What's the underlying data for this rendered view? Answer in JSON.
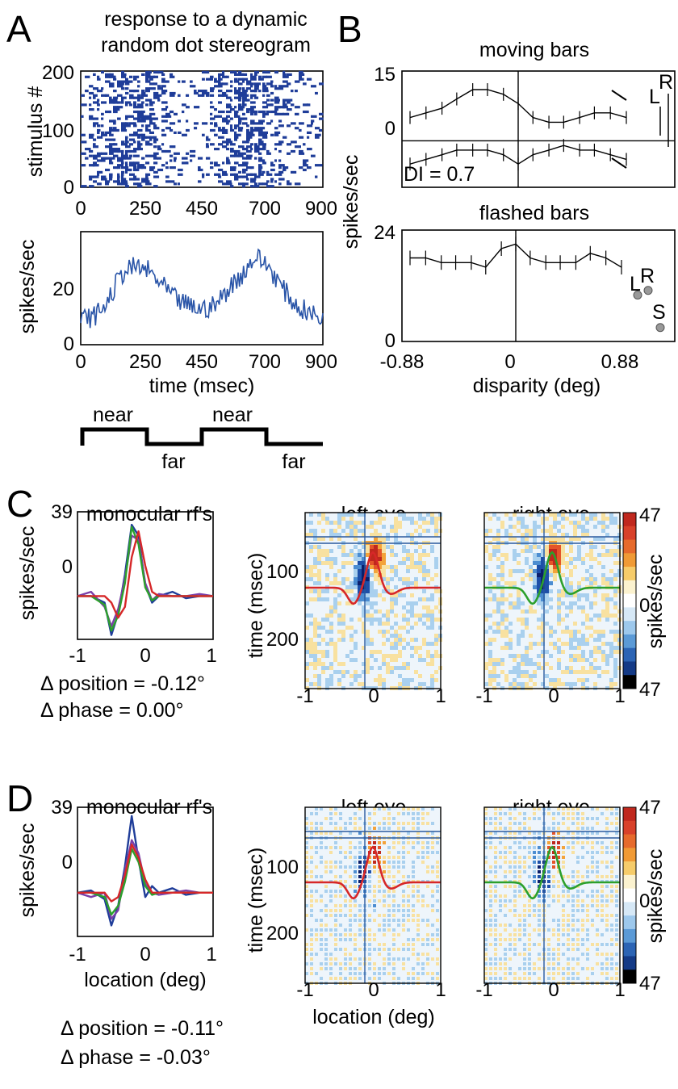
{
  "panels": {
    "A": {
      "label": "A",
      "title_lines": [
        "response to a dynamic",
        "random dot stereogram"
      ],
      "raster": {
        "type": "scatter",
        "ylabel": "stimulus #",
        "x_ticks": [
          "0",
          "250",
          "450",
          "700",
          "900"
        ],
        "y_ticks": [
          "0",
          "100",
          "200"
        ],
        "xlim": [
          0,
          900
        ],
        "ylim": [
          0,
          200
        ],
        "color": "#1f3d99"
      },
      "psth": {
        "type": "line",
        "ylabel": "spikes/sec",
        "xlabel": "time (msec)",
        "x_ticks": [
          "0",
          "250",
          "450",
          "700",
          "900"
        ],
        "y_ticks": [
          "0",
          "20"
        ],
        "xlim": [
          0,
          900
        ],
        "ylim": [
          0,
          32
        ],
        "color": "#2a55a8",
        "x": [
          0,
          50,
          100,
          150,
          200,
          250,
          300,
          350,
          400,
          450,
          500,
          550,
          600,
          650,
          700,
          750,
          800,
          850,
          900
        ],
        "y": [
          7,
          8,
          12,
          20,
          22,
          21,
          17,
          13,
          11,
          10,
          11,
          16,
          20,
          25,
          22,
          16,
          11,
          9,
          7
        ]
      },
      "stimulus": {
        "labels": [
          "near",
          "far",
          "near",
          "far"
        ]
      }
    },
    "B": {
      "label": "B",
      "moving": {
        "type": "line",
        "title": "moving bars",
        "ylabel": "spikes/sec",
        "y_ticks": [
          "15",
          "0"
        ],
        "note": "DI = 0.7",
        "monocular_labels": [
          "L",
          "R"
        ],
        "xlim": [
          -0.88,
          0.88
        ],
        "ylim": [
          -10,
          15
        ],
        "x": [
          -0.88,
          -0.75,
          -0.62,
          -0.5,
          -0.37,
          -0.25,
          -0.12,
          0,
          0.12,
          0.25,
          0.37,
          0.5,
          0.62,
          0.75,
          0.88
        ],
        "series": [
          {
            "values": [
              5,
              6,
              7,
              9,
              11,
              11,
              10,
              8,
              5,
              4,
              4,
              5,
              6,
              6,
              5
            ]
          },
          {
            "values": [
              -5,
              -4,
              -3,
              -2,
              -2,
              -2,
              -3,
              -5,
              -3,
              -2,
              -1,
              -2,
              -2,
              -3,
              -4
            ]
          }
        ]
      },
      "flashed": {
        "type": "line",
        "title": "flashed bars",
        "ylabel": "spikes/sec",
        "xlabel": "disparity (deg)",
        "x_ticks": [
          "-0.88",
          "0",
          "0.88"
        ],
        "y_ticks": [
          "24",
          "0"
        ],
        "monocular_labels": [
          "L",
          "R",
          "S"
        ],
        "xlim": [
          -0.88,
          0.88
        ],
        "ylim": [
          0,
          24
        ],
        "x": [
          -0.88,
          -0.75,
          -0.62,
          -0.5,
          -0.37,
          -0.25,
          -0.12,
          0,
          0.12,
          0.25,
          0.37,
          0.5,
          0.62,
          0.75,
          0.88
        ],
        "y": [
          18,
          18,
          17,
          17,
          17,
          16,
          20,
          21,
          18,
          17,
          17,
          17,
          19,
          18,
          16
        ],
        "monocular_values": {
          "L": 10,
          "R": 11,
          "S": 3
        }
      }
    },
    "C": {
      "label": "C",
      "rf": {
        "type": "line",
        "title": "monocular rf's",
        "ylabel": "spikes/sec",
        "y_ticks": [
          "39",
          "0"
        ],
        "x_ticks": [
          "-1",
          "0",
          "1"
        ],
        "xlim": [
          -1,
          1
        ],
        "ylim": [
          -20,
          39
        ],
        "x": [
          -1,
          -0.8,
          -0.6,
          -0.5,
          -0.4,
          -0.3,
          -0.2,
          -0.1,
          0,
          0.1,
          0.2,
          0.4,
          0.6,
          0.8,
          1
        ],
        "series": [
          {
            "color": "#1f3d99",
            "values": [
              0,
              0,
              -3,
              -18,
              -8,
              10,
              33,
              28,
              5,
              -3,
              0,
              2,
              -1,
              0,
              0
            ]
          },
          {
            "color": "#7a3fa8",
            "values": [
              0,
              2,
              -5,
              -14,
              -6,
              8,
              28,
              26,
              6,
              -2,
              1,
              0,
              0,
              1,
              0
            ]
          },
          {
            "color": "#2ca02c",
            "values": [
              0,
              0,
              -4,
              -16,
              -9,
              6,
              32,
              24,
              4,
              -2,
              0,
              0,
              0,
              0,
              0
            ]
          },
          {
            "color": "#d62728",
            "values": [
              0,
              0,
              0,
              -3,
              -10,
              -5,
              18,
              30,
              14,
              2,
              0,
              0,
              0,
              0,
              0
            ]
          }
        ],
        "notes": [
          "Δ position = -0.12°",
          "Δ phase = 0.00°"
        ]
      },
      "left_eye": {
        "type": "heatmap",
        "title": "left eye",
        "ylabel": "time (msec)",
        "y_ticks": [
          "100",
          "200"
        ],
        "x_ticks": [
          "-1",
          "0",
          "1"
        ],
        "curve_color": "#d62728"
      },
      "right_eye": {
        "type": "heatmap",
        "title": "right eye",
        "x_ticks": [
          "-1",
          "0",
          "1"
        ],
        "curve_color": "#2ca02c"
      },
      "colorbar": {
        "ticks": [
          "47",
          "0",
          "47"
        ],
        "label": "spikes/sec"
      }
    },
    "D": {
      "label": "D",
      "rf": {
        "type": "line",
        "title": "monocular rf's",
        "ylabel": "spikes/sec",
        "xlabel": "location (deg)",
        "y_ticks": [
          "39",
          "0"
        ],
        "x_ticks": [
          "-1",
          "0",
          "1"
        ],
        "xlim": [
          -1,
          1
        ],
        "ylim": [
          -20,
          39
        ],
        "x": [
          -1,
          -0.8,
          -0.6,
          -0.5,
          -0.4,
          -0.3,
          -0.2,
          -0.1,
          0,
          0.1,
          0.2,
          0.4,
          0.6,
          0.8,
          1
        ],
        "series": [
          {
            "color": "#1f3d99",
            "values": [
              0,
              1,
              -3,
              -15,
              -6,
              12,
              35,
              15,
              -2,
              3,
              0,
              2,
              -1,
              0,
              0
            ]
          },
          {
            "color": "#7a3fa8",
            "values": [
              0,
              -2,
              0,
              -12,
              -8,
              10,
              24,
              18,
              4,
              0,
              -1,
              0,
              1,
              0,
              0
            ]
          },
          {
            "color": "#2ca02c",
            "values": [
              0,
              0,
              -2,
              -10,
              -6,
              5,
              20,
              14,
              3,
              -1,
              0,
              0,
              0,
              0,
              0
            ]
          },
          {
            "color": "#d62728",
            "values": [
              0,
              0,
              0,
              -4,
              -2,
              8,
              22,
              16,
              6,
              0,
              0,
              0,
              0,
              0,
              0
            ]
          }
        ],
        "notes": [
          "Δ position = -0.11°",
          "Δ phase = -0.03°"
        ]
      },
      "left_eye": {
        "type": "heatmap",
        "title": "left eye",
        "ylabel": "time (msec)",
        "xlabel": "location (deg)",
        "y_ticks": [
          "100",
          "200"
        ],
        "x_ticks": [
          "-1",
          "0",
          "1"
        ],
        "curve_color": "#d62728"
      },
      "right_eye": {
        "type": "heatmap",
        "title": "right eye",
        "x_ticks": [
          "-1",
          "0",
          "1"
        ],
        "curve_color": "#2ca02c"
      },
      "colorbar": {
        "ticks": [
          "47",
          "0",
          "47"
        ],
        "label": "spikes/sec"
      }
    }
  },
  "chart_data": [
    {
      "type": "scatter",
      "title": "response to a dynamic random dot stereogram",
      "ylabel": "stimulus #",
      "xlim": [
        0,
        900
      ],
      "ylim": [
        0,
        200
      ]
    },
    {
      "type": "line",
      "xlabel": "time (msec)",
      "ylabel": "spikes/sec",
      "xlim": [
        0,
        900
      ],
      "ylim": [
        0,
        32
      ],
      "x": [
        0,
        50,
        100,
        150,
        200,
        250,
        300,
        350,
        400,
        450,
        500,
        550,
        600,
        650,
        700,
        750,
        800,
        850,
        900
      ],
      "y": [
        7,
        8,
        12,
        20,
        22,
        21,
        17,
        13,
        11,
        10,
        11,
        16,
        20,
        25,
        22,
        16,
        11,
        9,
        7
      ]
    },
    {
      "type": "line",
      "title": "moving bars",
      "ylabel": "spikes/sec",
      "xlim": [
        -0.88,
        0.88
      ],
      "ylim": [
        -10,
        15
      ],
      "x": [
        -0.88,
        -0.75,
        -0.62,
        -0.5,
        -0.37,
        -0.25,
        -0.12,
        0,
        0.12,
        0.25,
        0.37,
        0.5,
        0.62,
        0.75,
        0.88
      ],
      "series": [
        {
          "values": [
            5,
            6,
            7,
            9,
            11,
            11,
            10,
            8,
            5,
            4,
            4,
            5,
            6,
            6,
            5
          ]
        },
        {
          "values": [
            -5,
            -4,
            -3,
            -2,
            -2,
            -2,
            -3,
            -5,
            -3,
            -2,
            -1,
            -2,
            -2,
            -3,
            -4
          ]
        }
      ]
    },
    {
      "type": "line",
      "title": "flashed bars",
      "xlabel": "disparity (deg)",
      "ylabel": "spikes/sec",
      "xlim": [
        -0.88,
        0.88
      ],
      "ylim": [
        0,
        24
      ],
      "x": [
        -0.88,
        -0.75,
        -0.62,
        -0.5,
        -0.37,
        -0.25,
        -0.12,
        0,
        0.12,
        0.25,
        0.37,
        0.5,
        0.62,
        0.75,
        0.88
      ],
      "y": [
        18,
        18,
        17,
        17,
        17,
        16,
        20,
        21,
        18,
        17,
        17,
        17,
        19,
        18,
        16
      ]
    },
    {
      "type": "line",
      "title": "monocular rf's",
      "ylabel": "spikes/sec",
      "xlim": [
        -1,
        1
      ],
      "ylim": [
        -20,
        39
      ]
    },
    {
      "type": "heatmap",
      "title": "left eye",
      "ylabel": "time (msec)",
      "xlim": [
        -1,
        1
      ],
      "ylim": [
        250,
        0
      ]
    },
    {
      "type": "heatmap",
      "title": "right eye",
      "xlim": [
        -1,
        1
      ],
      "ylim": [
        250,
        0
      ]
    },
    {
      "type": "line",
      "title": "monocular rf's",
      "xlabel": "location (deg)",
      "ylabel": "spikes/sec",
      "xlim": [
        -1,
        1
      ],
      "ylim": [
        -20,
        39
      ]
    },
    {
      "type": "heatmap",
      "title": "left eye",
      "xlabel": "location (deg)",
      "ylabel": "time (msec)",
      "xlim": [
        -1,
        1
      ],
      "ylim": [
        250,
        0
      ]
    },
    {
      "type": "heatmap",
      "title": "right eye",
      "xlim": [
        -1,
        1
      ],
      "ylim": [
        250,
        0
      ]
    }
  ]
}
